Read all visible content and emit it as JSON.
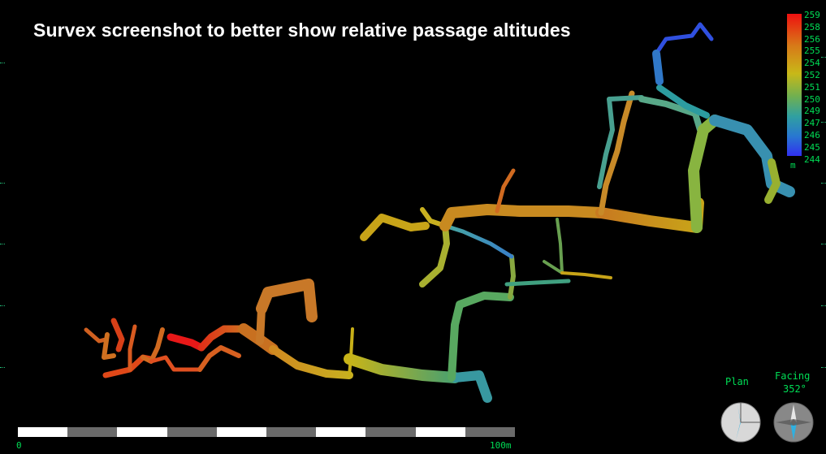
{
  "title": "Survex screenshot to better show relative passage altitudes",
  "colorbar": {
    "labels": [
      "259",
      "258",
      "256",
      "255",
      "254",
      "252",
      "251",
      "250",
      "249",
      "247",
      "246",
      "245",
      "244"
    ],
    "unit": "m"
  },
  "scalebar": {
    "start_label": "0",
    "end_label": "100m",
    "segments": 10
  },
  "indicators": {
    "plan_label": "Plan",
    "facing_label": "Facing",
    "facing_value": "352°"
  },
  "colors": {
    "text": "#00dd55",
    "background": "#000000",
    "title": "#ffffff"
  }
}
